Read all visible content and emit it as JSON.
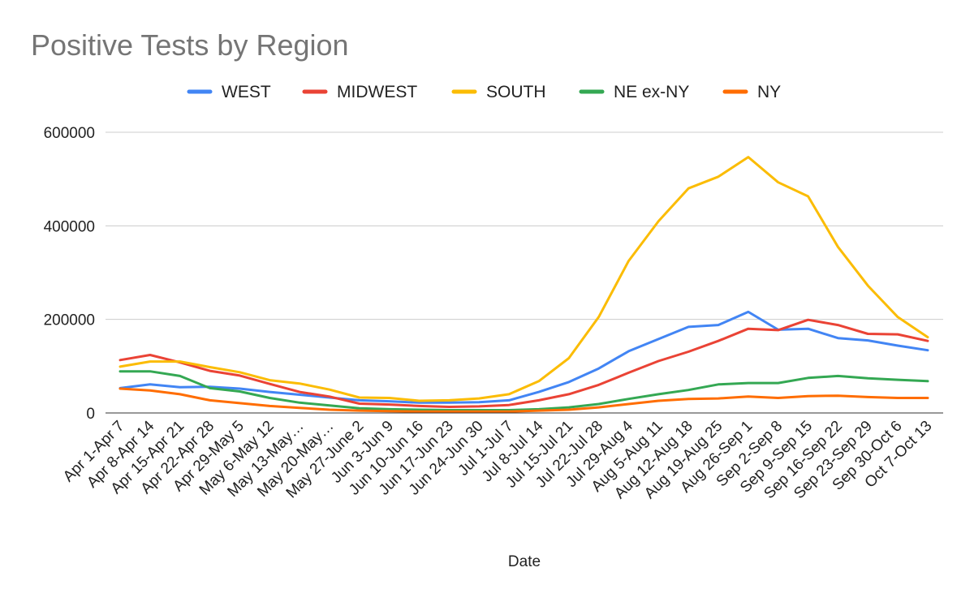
{
  "chart_data": {
    "type": "line",
    "title": "Positive Tests by Region",
    "xlabel": "Date",
    "ylabel": "",
    "ylim": [
      0,
      600000
    ],
    "yticks": [
      0,
      200000,
      400000,
      600000
    ],
    "ytick_labels": [
      "0",
      "200000",
      "400000",
      "600000"
    ],
    "grid": true,
    "legend_position": "top",
    "categories": [
      "Apr 1-Apr 7",
      "Apr 8-Apr 14",
      "Apr 15-Apr 21",
      "Apr 22-Apr 28",
      "Apr 29-May 5",
      "May 6-May 12",
      "May 13-May…",
      "May 20-May…",
      "May 27-June 2",
      "Jun 3-Jun 9",
      "Jun 10-Jun 16",
      "Jun 17-Jun 23",
      "Jun 24-Jun 30",
      "Jul 1-Jul 7",
      "Jul 8-Jul 14",
      "Jul 15-Jul 21",
      "Jul 22-Jul 28",
      "Jul 29-Aug 4",
      "Aug 5-Aug 11",
      "Aug 12-Aug 18",
      "Aug 19-Aug 25",
      "Aug 26-Sep 1",
      "Sep 2-Sep 8",
      "Sep 9-Sep 15",
      "Sep 16-Sep 22",
      "Sep 23-Sep 29",
      "Sep 30-Oct 6",
      "Oct 7-Oct 13"
    ],
    "series": [
      {
        "name": "WEST",
        "color": "#4285f4",
        "values": [
          53000,
          61000,
          55000,
          56000,
          52000,
          45000,
          39000,
          33000,
          27000,
          25000,
          22000,
          22000,
          23000,
          27000,
          45000,
          66000,
          95000,
          132000,
          158000,
          184000,
          188000,
          216000,
          178000,
          180000,
          160000,
          155000,
          144000,
          134000
        ]
      },
      {
        "name": "MIDWEST",
        "color": "#ea4335",
        "values": [
          113000,
          124000,
          108000,
          90000,
          80000,
          62000,
          45000,
          35000,
          20000,
          18000,
          15000,
          13000,
          14000,
          17000,
          27000,
          40000,
          60000,
          86000,
          111000,
          131000,
          154000,
          180000,
          177000,
          199000,
          188000,
          169000,
          168000,
          154000
        ]
      },
      {
        "name": "SOUTH",
        "color": "#fbbc04",
        "values": [
          99000,
          110000,
          110000,
          98000,
          87000,
          70000,
          63000,
          50000,
          33000,
          32000,
          26000,
          27000,
          31000,
          40000,
          68000,
          117000,
          205000,
          325000,
          410000,
          480000,
          505000,
          547000,
          493000,
          463000,
          355000,
          272000,
          205000,
          162000
        ]
      },
      {
        "name": "NE ex-NY",
        "color": "#34a853",
        "values": [
          89000,
          89000,
          79000,
          53000,
          46000,
          32000,
          22000,
          16000,
          10000,
          8000,
          7000,
          6000,
          6000,
          6000,
          8000,
          12000,
          19000,
          30000,
          40000,
          49000,
          61000,
          64000,
          64000,
          75000,
          79000,
          74000,
          71000,
          68000
        ]
      },
      {
        "name": "NY",
        "color": "#ff6d01",
        "values": [
          52000,
          48000,
          40000,
          27000,
          21000,
          15000,
          11000,
          7000,
          5000,
          4000,
          3000,
          3000,
          3000,
          3000,
          5000,
          7000,
          12000,
          19000,
          26000,
          30000,
          31000,
          35000,
          32000,
          36000,
          37000,
          34000,
          32000,
          32000
        ]
      }
    ]
  }
}
